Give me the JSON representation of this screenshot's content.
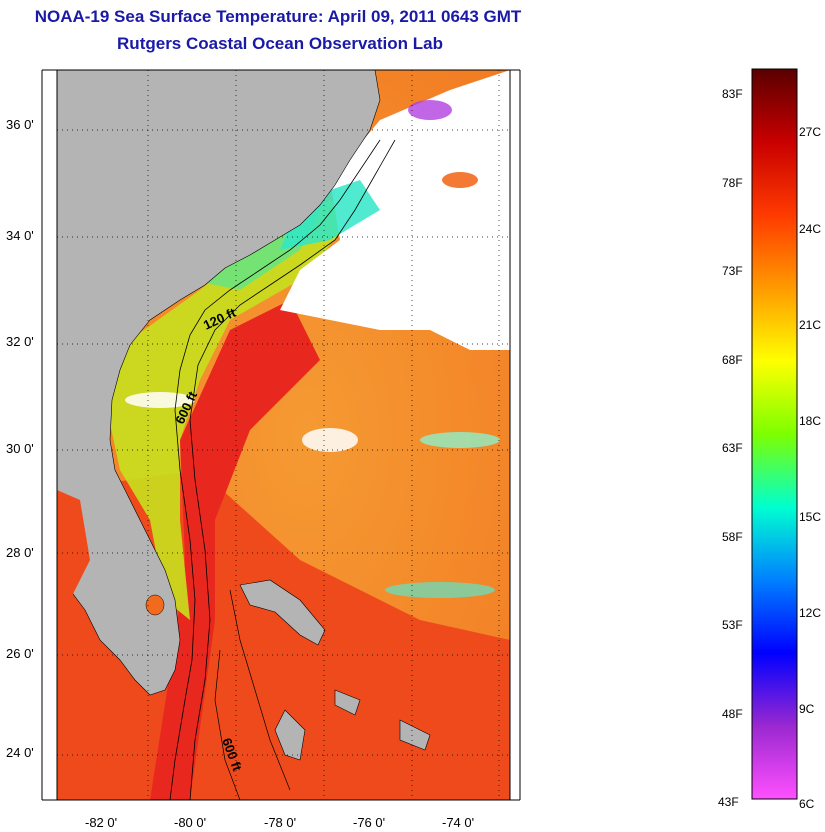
{
  "title": {
    "line1": "NOAA-19 Sea Surface Temperature:  April 09, 2011 0643 GMT",
    "line2": "Rutgers Coastal Ocean Observation Lab"
  },
  "map": {
    "lat_labels": [
      "36 0'",
      "34 0'",
      "32 0'",
      "30 0'",
      "28 0'",
      "26 0'",
      "24 0'"
    ],
    "lon_labels": [
      "-82 0'",
      "-80 0'",
      "-78 0'",
      "-76 0'",
      "-74 0'"
    ],
    "contour_labels": [
      "120 ft",
      "600 ft",
      "600 ft"
    ],
    "colors": {
      "land": "#b4b4b4",
      "cloud": "#ffffff",
      "gulf_stream": "#e8281e",
      "warm_water": "#f26a1e",
      "shelf_water": "#c8e01e",
      "cold_water": "#30e6c8"
    }
  },
  "colorbar": {
    "fahrenheit_labels": [
      "83F",
      "78F",
      "73F",
      "68F",
      "63F",
      "58F",
      "53F",
      "48F",
      "43F"
    ],
    "celsius_labels": [
      "27C",
      "24C",
      "21C",
      "18C",
      "15C",
      "12C",
      "9C",
      "6C"
    ],
    "gradient": [
      "#5a0000",
      "#c80000",
      "#ff3a00",
      "#ff9a00",
      "#ffff00",
      "#7dff00",
      "#00ffd0",
      "#0080ff",
      "#0000ff",
      "#9a28d0",
      "#ff50ff"
    ]
  }
}
